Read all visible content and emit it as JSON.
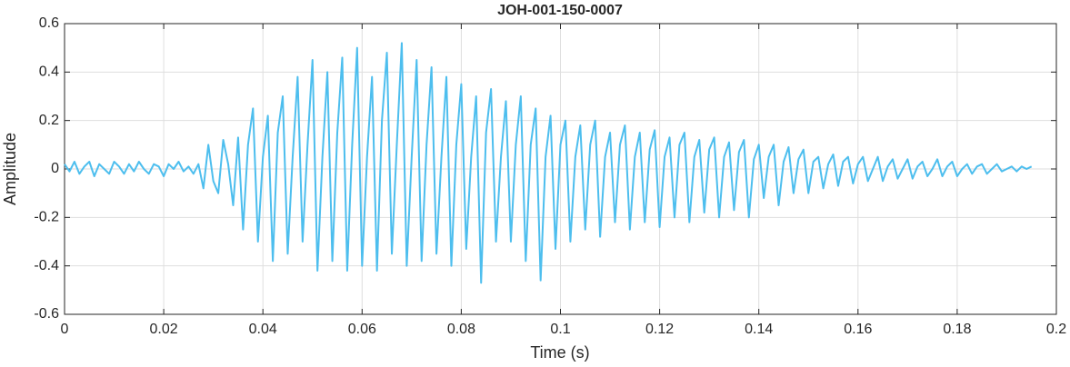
{
  "chart_data": {
    "type": "line",
    "title": "JOH-001-150-0007",
    "x_label": "Time (s)",
    "y_label": "Amplitude",
    "xlim": [
      0,
      0.2
    ],
    "xticks": [
      0,
      0.02,
      0.04,
      0.06,
      0.08,
      0.1,
      0.12,
      0.14,
      0.16,
      0.18,
      0.2
    ],
    "ylim": [
      -0.6,
      0.6
    ],
    "yticks": [
      -0.6,
      -0.4,
      -0.2,
      0,
      0.2,
      0.4,
      0.6
    ],
    "grid": true,
    "series": [
      {
        "color": "#4dbeee",
        "x": [
          0,
          0.001,
          0.002,
          0.003,
          0.004,
          0.005,
          0.006,
          0.007,
          0.008,
          0.009,
          0.01,
          0.011,
          0.012,
          0.013,
          0.014,
          0.015,
          0.016,
          0.017,
          0.018,
          0.019,
          0.02,
          0.021,
          0.022,
          0.023,
          0.024,
          0.025,
          0.026,
          0.027,
          0.028,
          0.029,
          0.03,
          0.031,
          0.032,
          0.033,
          0.034,
          0.035,
          0.036,
          0.037,
          0.038,
          0.039,
          0.04,
          0.041,
          0.042,
          0.043,
          0.044,
          0.045,
          0.046,
          0.047,
          0.048,
          0.049,
          0.05,
          0.051,
          0.052,
          0.053,
          0.054,
          0.055,
          0.056,
          0.057,
          0.058,
          0.059,
          0.06,
          0.061,
          0.062,
          0.063,
          0.064,
          0.065,
          0.066,
          0.067,
          0.068,
          0.069,
          0.07,
          0.071,
          0.072,
          0.073,
          0.074,
          0.075,
          0.076,
          0.077,
          0.078,
          0.079,
          0.08,
          0.081,
          0.082,
          0.083,
          0.084,
          0.085,
          0.086,
          0.087,
          0.088,
          0.089,
          0.09,
          0.091,
          0.092,
          0.093,
          0.094,
          0.095,
          0.096,
          0.097,
          0.098,
          0.099,
          0.1,
          0.101,
          0.102,
          0.103,
          0.104,
          0.105,
          0.106,
          0.107,
          0.108,
          0.109,
          0.11,
          0.111,
          0.112,
          0.113,
          0.114,
          0.115,
          0.116,
          0.117,
          0.118,
          0.119,
          0.12,
          0.121,
          0.122,
          0.123,
          0.124,
          0.125,
          0.126,
          0.127,
          0.128,
          0.129,
          0.13,
          0.131,
          0.132,
          0.133,
          0.134,
          0.135,
          0.136,
          0.137,
          0.138,
          0.139,
          0.14,
          0.141,
          0.142,
          0.143,
          0.144,
          0.145,
          0.146,
          0.147,
          0.148,
          0.149,
          0.15,
          0.151,
          0.152,
          0.153,
          0.154,
          0.155,
          0.156,
          0.157,
          0.158,
          0.159,
          0.16,
          0.161,
          0.162,
          0.163,
          0.164,
          0.165,
          0.166,
          0.167,
          0.168,
          0.169,
          0.17,
          0.171,
          0.172,
          0.173,
          0.174,
          0.175,
          0.176,
          0.177,
          0.178,
          0.179,
          0.18,
          0.181,
          0.182,
          0.183,
          0.184,
          0.185,
          0.186,
          0.187,
          0.188,
          0.189,
          0.19,
          0.191,
          0.192,
          0.193,
          0.194,
          0.195
        ],
        "values": [
          0.02,
          -0.01,
          0.03,
          -0.02,
          0.01,
          0.03,
          -0.03,
          0.02,
          0,
          -0.02,
          0.03,
          0.01,
          -0.02,
          0.02,
          -0.01,
          0.03,
          0,
          -0.02,
          0.02,
          0.01,
          -0.03,
          0.02,
          0,
          0.03,
          -0.01,
          0.01,
          -0.02,
          0.02,
          -0.08,
          0.1,
          -0.05,
          -0.1,
          0.12,
          0.02,
          -0.15,
          0.13,
          -0.25,
          0.1,
          0.25,
          -0.3,
          0.05,
          0.22,
          -0.38,
          0.15,
          0.3,
          -0.35,
          0.05,
          0.38,
          -0.3,
          0.1,
          0.45,
          -0.42,
          0.05,
          0.4,
          -0.38,
          0.15,
          0.46,
          -0.42,
          0.1,
          0.5,
          -0.4,
          0.05,
          0.38,
          -0.42,
          0.2,
          0.48,
          -0.35,
          0.1,
          0.52,
          -0.4,
          0.05,
          0.45,
          -0.38,
          0.1,
          0.42,
          -0.35,
          0.05,
          0.38,
          -0.4,
          0.1,
          0.35,
          -0.33,
          0.05,
          0.3,
          -0.47,
          0.15,
          0.33,
          -0.3,
          0.05,
          0.28,
          -0.3,
          0.1,
          0.3,
          -0.38,
          0.1,
          0.25,
          -0.46,
          0.05,
          0.22,
          -0.33,
          0.1,
          0.2,
          -0.3,
          0.05,
          0.18,
          -0.25,
          0.1,
          0.2,
          -0.28,
          0.05,
          0.15,
          -0.22,
          0.1,
          0.18,
          -0.25,
          0.05,
          0.15,
          -0.22,
          0.08,
          0.16,
          -0.24,
          0.05,
          0.13,
          -0.2,
          0.1,
          0.15,
          -0.22,
          0.05,
          0.12,
          -0.18,
          0.08,
          0.13,
          -0.2,
          0.05,
          0.11,
          -0.17,
          0.07,
          0.12,
          -0.2,
          0.04,
          0.1,
          -0.12,
          0.05,
          0.1,
          -0.15,
          0.03,
          0.09,
          -0.1,
          0.04,
          0.08,
          -0.1,
          0.03,
          0.05,
          -0.08,
          0.02,
          0.06,
          -0.07,
          0.03,
          0.05,
          -0.06,
          0.02,
          0.05,
          -0.05,
          0,
          0.05,
          -0.05,
          0.01,
          0.04,
          -0.04,
          0,
          0.04,
          -0.04,
          0.01,
          0.03,
          -0.03,
          0,
          0.04,
          -0.03,
          0.01,
          0.03,
          -0.03,
          0,
          0.02,
          -0.02,
          0.01,
          0.02,
          -0.02,
          0,
          0.02,
          -0.01,
          0,
          0.01,
          -0.01,
          0.01,
          0,
          0.01
        ]
      }
    ]
  }
}
